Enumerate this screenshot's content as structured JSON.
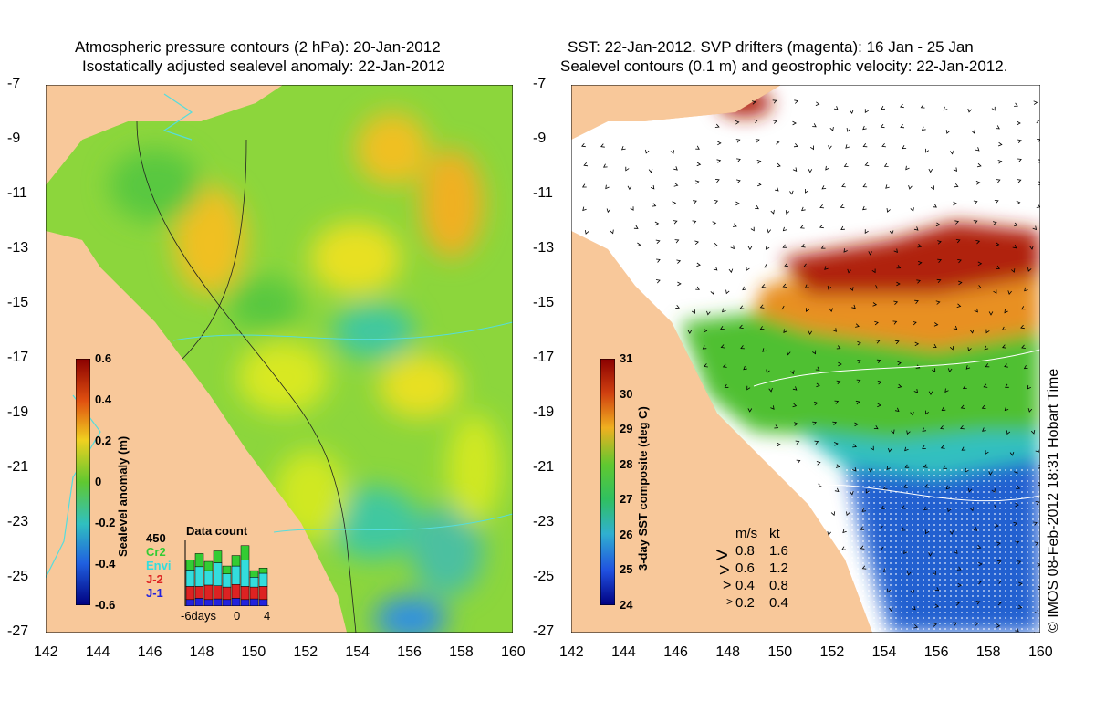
{
  "left_panel": {
    "title_line1": "Atmospheric pressure contours (2 hPa): 20-Jan-2012",
    "title_line2": "Isostatically adjusted sealevel anomaly: 22-Jan-2012",
    "colorbar": {
      "label": "Sealevel anomaly (m)",
      "ticks": [
        "0.6",
        "0.4",
        "0.2",
        "0",
        "-0.2",
        "-0.4",
        "-0.6"
      ]
    },
    "data_count": {
      "title": "Data count",
      "max_label": "450",
      "legend": [
        {
          "name": "Cr2",
          "color": "#33cc33"
        },
        {
          "name": "Envi",
          "color": "#33dddd"
        },
        {
          "name": "J-2",
          "color": "#dd2222"
        },
        {
          "name": "J-1",
          "color": "#2222dd"
        }
      ],
      "x_labels": [
        "-6days",
        "0",
        "4"
      ],
      "bars": [
        {
          "j1": 0.1,
          "j2": 0.2,
          "envi": 0.25,
          "cr2": 0.15
        },
        {
          "j1": 0.12,
          "j2": 0.18,
          "envi": 0.3,
          "cr2": 0.2
        },
        {
          "j1": 0.1,
          "j2": 0.22,
          "envi": 0.22,
          "cr2": 0.14
        },
        {
          "j1": 0.11,
          "j2": 0.2,
          "envi": 0.35,
          "cr2": 0.18
        },
        {
          "j1": 0.1,
          "j2": 0.19,
          "envi": 0.2,
          "cr2": 0.12
        },
        {
          "j1": 0.12,
          "j2": 0.21,
          "envi": 0.28,
          "cr2": 0.16
        },
        {
          "j1": 0.1,
          "j2": 0.2,
          "envi": 0.4,
          "cr2": 0.22
        },
        {
          "j1": 0.11,
          "j2": 0.18,
          "envi": 0.15,
          "cr2": 0.1
        },
        {
          "j1": 0.1,
          "j2": 0.2,
          "envi": 0.2,
          "cr2": 0.08
        }
      ]
    }
  },
  "right_panel": {
    "title_line1": "SST: 22-Jan-2012. SVP drifters (magenta): 16 Jan - 25 Jan",
    "title_line2": "Sealevel contours (0.1 m) and geostrophic velocity: 22-Jan-2012.",
    "colorbar": {
      "label": "3-day SST composite (deg C)",
      "ticks": [
        "31",
        "30",
        "29",
        "28",
        "27",
        "26",
        "25",
        "24"
      ]
    },
    "velocity_legend": {
      "header_ms": "m/s",
      "header_kt": "kt",
      "rows": [
        {
          "ms": "0.8",
          "kt": "1.6"
        },
        {
          "ms": "0.6",
          "kt": "1.2"
        },
        {
          "ms": "0.4",
          "kt": "0.8"
        },
        {
          "ms": "0.2",
          "kt": "0.4"
        }
      ]
    },
    "credit": "© IMOS 08-Feb-2012 18:31 Hobart Time"
  },
  "axes": {
    "lat_ticks": [
      "-7",
      "-9",
      "-11",
      "-13",
      "-15",
      "-17",
      "-19",
      "-21",
      "-23",
      "-25",
      "-27"
    ],
    "lon_ticks": [
      "142",
      "144",
      "146",
      "148",
      "150",
      "152",
      "154",
      "156",
      "158",
      "160"
    ]
  },
  "colors": {
    "land": "#f8c89a",
    "ocean_green": "#7ed23a",
    "ocean_yellow": "#d6e82a",
    "anomaly_orange": "#f0b020",
    "anomaly_cyan": "#40c8a0",
    "sst_red": "#b02010",
    "sst_orange": "#e89020",
    "sst_green": "#50c030",
    "sst_blue": "#2060d0",
    "coast_contour": "#55dddd"
  }
}
